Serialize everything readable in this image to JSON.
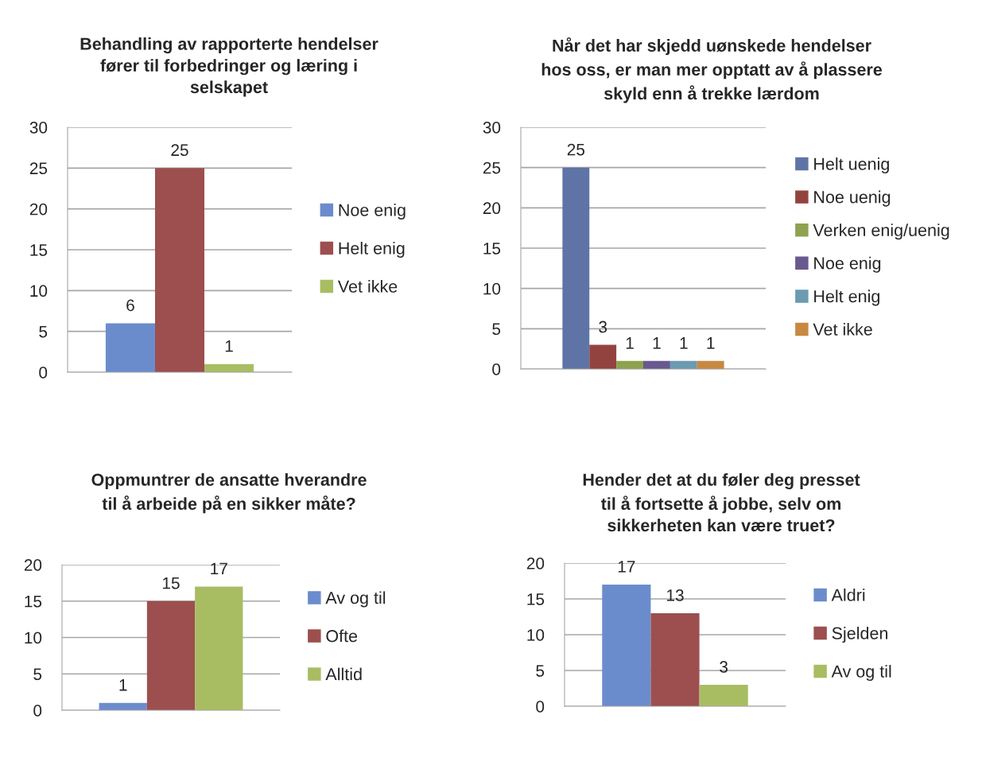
{
  "chart_data": [
    {
      "type": "bar",
      "title": "Behandling av rapporterte hendelser\nfører til forbedringer og læring i\nselskapet",
      "categories": [
        null
      ],
      "series": [
        {
          "name": "Noe enig",
          "color": "#6b8ccc",
          "values": [
            6
          ]
        },
        {
          "name": "Helt enig",
          "color": "#9c4f4e",
          "values": [
            25
          ]
        },
        {
          "name": "Vet ikke",
          "color": "#a8bd62",
          "values": [
            1
          ]
        }
      ],
      "ylim": [
        0,
        30
      ],
      "yticks": [
        0,
        5,
        10,
        15,
        20,
        25,
        30
      ],
      "grid": "y",
      "legend": "right",
      "data_labels": true
    },
    {
      "type": "bar",
      "title": "Når det har skjedd uønskede hendelser\nhos oss, er man mer opptatt av å plassere\nskyld enn å trekke lærdom",
      "categories": [
        null
      ],
      "series": [
        {
          "name": "Helt uenig",
          "color": "#5f74a6",
          "values": [
            25
          ]
        },
        {
          "name": "Noe uenig",
          "color": "#93433f",
          "values": [
            3
          ]
        },
        {
          "name": "Verken enig/uenig",
          "color": "#8ea24f",
          "values": [
            1
          ]
        },
        {
          "name": "Noe enig",
          "color": "#6a5891",
          "values": [
            1
          ]
        },
        {
          "name": "Helt enig",
          "color": "#6b9bb0",
          "values": [
            1
          ]
        },
        {
          "name": "Vet ikke",
          "color": "#c78942",
          "values": [
            1
          ]
        }
      ],
      "ylim": [
        0,
        30
      ],
      "yticks": [
        0,
        5,
        10,
        15,
        20,
        25,
        30
      ],
      "grid": "y",
      "legend": "right",
      "data_labels": true
    },
    {
      "type": "bar",
      "title": "Oppmuntrer de ansatte hverandre\ntil å arbeide på en sikker måte?",
      "categories": [
        null
      ],
      "series": [
        {
          "name": "Av og til",
          "color": "#6b8ccc",
          "values": [
            1
          ]
        },
        {
          "name": "Ofte",
          "color": "#9c4f4e",
          "values": [
            15
          ]
        },
        {
          "name": "Alltid",
          "color": "#a8bd62",
          "values": [
            17
          ]
        }
      ],
      "ylim": [
        0,
        20
      ],
      "yticks": [
        0,
        5,
        10,
        15,
        20
      ],
      "grid": "y",
      "legend": "right",
      "data_labels": true
    },
    {
      "type": "bar",
      "title": "Hender det at du føler deg presset\ntil å fortsette å jobbe, selv om\nsikkerheten kan være truet?",
      "categories": [
        null
      ],
      "series": [
        {
          "name": "Aldri",
          "color": "#6b8ccc",
          "values": [
            17
          ]
        },
        {
          "name": "Sjelden",
          "color": "#9c4f4e",
          "values": [
            13
          ]
        },
        {
          "name": "Av og til",
          "color": "#a8bd62",
          "values": [
            3
          ]
        }
      ],
      "ylim": [
        0,
        20
      ],
      "yticks": [
        0,
        5,
        10,
        15,
        20
      ],
      "grid": "y",
      "legend": "right",
      "data_labels": true
    }
  ]
}
